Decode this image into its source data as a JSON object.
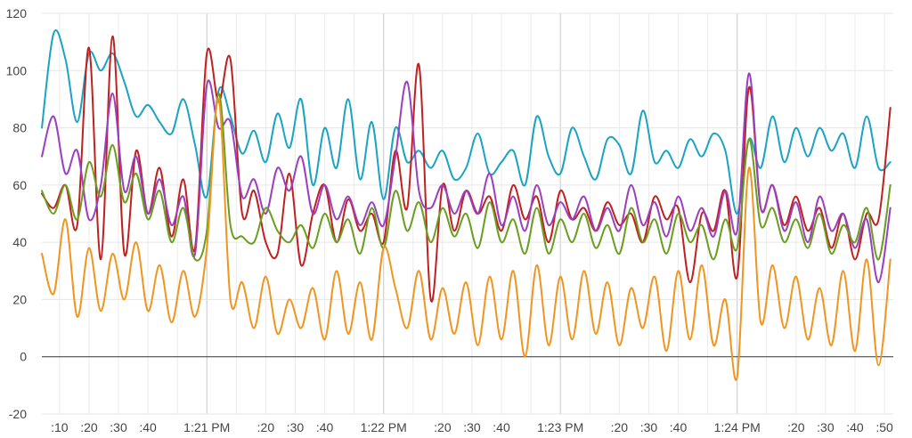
{
  "chart_data": {
    "type": "line",
    "title": "",
    "xlabel": "",
    "ylabel": "",
    "ylim": [
      -20,
      120
    ],
    "yticks": [
      -20,
      0,
      20,
      40,
      60,
      80,
      100,
      120
    ],
    "xlim_seconds_past_1_20_PM": [
      4,
      53
    ],
    "x_start": "1:20:04 PM",
    "x_end": "1:24:53 PM",
    "x_unit": "time",
    "xticks": [
      {
        "label": ":10",
        "time": "1:20:10 PM",
        "major": false
      },
      {
        "label": ":20",
        "time": "1:20:20 PM",
        "major": false
      },
      {
        "label": ":30",
        "time": "1:20:30 PM",
        "major": false
      },
      {
        "label": ":40",
        "time": "1:20:40 PM",
        "major": false
      },
      {
        "label": "1:21 PM",
        "time": "1:21:00 PM",
        "major": true
      },
      {
        "label": ":20",
        "time": "1:21:20 PM",
        "major": false
      },
      {
        "label": ":30",
        "time": "1:21:30 PM",
        "major": false
      },
      {
        "label": ":40",
        "time": "1:21:40 PM",
        "major": false
      },
      {
        "label": "1:22 PM",
        "time": "1:22:00 PM",
        "major": true
      },
      {
        "label": ":20",
        "time": "1:22:20 PM",
        "major": false
      },
      {
        "label": ":30",
        "time": "1:22:30 PM",
        "major": false
      },
      {
        "label": ":40",
        "time": "1:22:40 PM",
        "major": false
      },
      {
        "label": "1:23 PM",
        "time": "1:23:00 PM",
        "major": true
      },
      {
        "label": ":20",
        "time": "1:23:20 PM",
        "major": false
      },
      {
        "label": ":30",
        "time": "1:23:30 PM",
        "major": false
      },
      {
        "label": ":40",
        "time": "1:23:40 PM",
        "major": false
      },
      {
        "label": "1:24 PM",
        "time": "1:24:00 PM",
        "major": true
      },
      {
        "label": ":20",
        "time": "1:24:20 PM",
        "major": false
      },
      {
        "label": ":30",
        "time": "1:24:30 PM",
        "major": false
      },
      {
        "label": ":40",
        "time": "1:24:40 PM",
        "major": false
      },
      {
        "label": ":50",
        "time": "1:24:50 PM",
        "major": false
      }
    ],
    "grid": true,
    "legend": "none",
    "series": [
      {
        "color": "#1aa3c4",
        "times": [
          "1:20:04 PM",
          "1:20:08 PM",
          "1:20:12 PM",
          "1:20:16 PM",
          "1:20:20 PM",
          "1:20:24 PM",
          "1:20:28 PM",
          "1:20:32 PM",
          "1:20:36 PM",
          "1:20:40 PM",
          "1:20:44 PM",
          "1:20:48 PM",
          "1:20:52 PM",
          "1:20:56 PM",
          "1:21:00 PM",
          "1:21:04 PM",
          "1:21:08 PM",
          "1:21:12 PM",
          "1:21:16 PM",
          "1:21:20 PM",
          "1:21:24 PM",
          "1:21:28 PM",
          "1:21:32 PM",
          "1:21:36 PM",
          "1:21:40 PM",
          "1:21:44 PM",
          "1:21:48 PM",
          "1:21:52 PM",
          "1:21:56 PM",
          "1:22:00 PM",
          "1:22:04 PM",
          "1:22:08 PM",
          "1:22:12 PM",
          "1:22:16 PM",
          "1:22:20 PM",
          "1:22:24 PM",
          "1:22:28 PM",
          "1:22:32 PM",
          "1:22:36 PM",
          "1:22:40 PM",
          "1:22:44 PM",
          "1:22:48 PM",
          "1:22:52 PM",
          "1:22:56 PM",
          "1:23:00 PM",
          "1:23:04 PM",
          "1:23:08 PM",
          "1:23:12 PM",
          "1:23:16 PM",
          "1:23:20 PM",
          "1:23:24 PM",
          "1:23:28 PM",
          "1:23:32 PM",
          "1:23:36 PM",
          "1:23:40 PM",
          "1:23:44 PM",
          "1:23:48 PM",
          "1:23:52 PM",
          "1:23:56 PM",
          "1:24:00 PM",
          "1:24:04 PM",
          "1:24:08 PM",
          "1:24:12 PM",
          "1:24:16 PM",
          "1:24:20 PM",
          "1:24:24 PM",
          "1:24:28 PM",
          "1:24:32 PM",
          "1:24:36 PM",
          "1:24:40 PM",
          "1:24:44 PM",
          "1:24:48 PM",
          "1:24:52 PM"
        ],
        "values": [
          80,
          113,
          104,
          82,
          106,
          100,
          106,
          96,
          84,
          88,
          82,
          78,
          90,
          74,
          56,
          93,
          84,
          71,
          79,
          68,
          85,
          73,
          90,
          60,
          80,
          66,
          90,
          62,
          82,
          55,
          80,
          68,
          72,
          66,
          72,
          62,
          66,
          78,
          64,
          68,
          72,
          60,
          84,
          70,
          64,
          80,
          70,
          62,
          76,
          74,
          64,
          86,
          68,
          72,
          66,
          76,
          70,
          78,
          72,
          50,
          76,
          66,
          84,
          68,
          80,
          70,
          80,
          72,
          78,
          66,
          84,
          66,
          68
        ]
      },
      {
        "color": "#c0201f",
        "times": [
          "1:20:04 PM",
          "1:20:08 PM",
          "1:20:12 PM",
          "1:20:16 PM",
          "1:20:20 PM",
          "1:20:24 PM",
          "1:20:28 PM",
          "1:20:32 PM",
          "1:20:36 PM",
          "1:20:40 PM",
          "1:20:44 PM",
          "1:20:48 PM",
          "1:20:52 PM",
          "1:20:56 PM",
          "1:21:00 PM",
          "1:21:04 PM",
          "1:21:08 PM",
          "1:21:12 PM",
          "1:21:16 PM",
          "1:21:20 PM",
          "1:21:24 PM",
          "1:21:28 PM",
          "1:21:32 PM",
          "1:21:36 PM",
          "1:21:40 PM",
          "1:21:44 PM",
          "1:21:48 PM",
          "1:21:52 PM",
          "1:21:56 PM",
          "1:22:00 PM",
          "1:22:04 PM",
          "1:22:08 PM",
          "1:22:12 PM",
          "1:22:16 PM",
          "1:22:20 PM",
          "1:22:24 PM",
          "1:22:28 PM",
          "1:22:32 PM",
          "1:22:36 PM",
          "1:22:40 PM",
          "1:22:44 PM",
          "1:22:48 PM",
          "1:22:52 PM",
          "1:22:56 PM",
          "1:23:00 PM",
          "1:23:04 PM",
          "1:23:08 PM",
          "1:23:12 PM",
          "1:23:16 PM",
          "1:23:20 PM",
          "1:23:24 PM",
          "1:23:28 PM",
          "1:23:32 PM",
          "1:23:36 PM",
          "1:23:40 PM",
          "1:23:44 PM",
          "1:23:48 PM",
          "1:23:52 PM",
          "1:23:56 PM",
          "1:24:00 PM",
          "1:24:04 PM",
          "1:24:08 PM",
          "1:24:12 PM",
          "1:24:16 PM",
          "1:24:20 PM",
          "1:24:24 PM",
          "1:24:28 PM",
          "1:24:32 PM",
          "1:24:36 PM",
          "1:24:40 PM",
          "1:24:44 PM",
          "1:24:48 PM",
          "1:24:52 PM"
        ],
        "values": [
          57,
          52,
          60,
          46,
          108,
          34,
          112,
          36,
          72,
          50,
          66,
          42,
          62,
          38,
          106,
          89,
          104,
          50,
          58,
          40,
          36,
          64,
          32,
          50,
          60,
          40,
          55,
          44,
          50,
          40,
          72,
          52,
          102,
          20,
          60,
          44,
          58,
          50,
          56,
          44,
          60,
          48,
          56,
          40,
          58,
          48,
          52,
          44,
          54,
          46,
          50,
          40,
          56,
          48,
          52,
          26,
          50,
          44,
          58,
          28,
          94,
          52,
          60,
          46,
          56,
          44,
          52,
          38,
          50,
          34,
          50,
          48,
          87
        ]
      },
      {
        "color": "#9b3fbf",
        "times": [
          "1:20:04 PM",
          "1:20:08 PM",
          "1:20:12 PM",
          "1:20:16 PM",
          "1:20:20 PM",
          "1:20:24 PM",
          "1:20:28 PM",
          "1:20:32 PM",
          "1:20:36 PM",
          "1:20:40 PM",
          "1:20:44 PM",
          "1:20:48 PM",
          "1:20:52 PM",
          "1:20:56 PM",
          "1:21:00 PM",
          "1:21:04 PM",
          "1:21:08 PM",
          "1:21:12 PM",
          "1:21:16 PM",
          "1:21:20 PM",
          "1:21:24 PM",
          "1:21:28 PM",
          "1:21:32 PM",
          "1:21:36 PM",
          "1:21:40 PM",
          "1:21:44 PM",
          "1:21:48 PM",
          "1:21:52 PM",
          "1:21:56 PM",
          "1:22:00 PM",
          "1:22:04 PM",
          "1:22:08 PM",
          "1:22:12 PM",
          "1:22:16 PM",
          "1:22:20 PM",
          "1:22:24 PM",
          "1:22:28 PM",
          "1:22:32 PM",
          "1:22:36 PM",
          "1:22:40 PM",
          "1:22:44 PM",
          "1:22:48 PM",
          "1:22:52 PM",
          "1:22:56 PM",
          "1:23:00 PM",
          "1:23:04 PM",
          "1:23:08 PM",
          "1:23:12 PM",
          "1:23:16 PM",
          "1:23:20 PM",
          "1:23:24 PM",
          "1:23:28 PM",
          "1:23:32 PM",
          "1:23:36 PM",
          "1:23:40 PM",
          "1:23:44 PM",
          "1:23:48 PM",
          "1:23:52 PM",
          "1:23:56 PM",
          "1:24:00 PM",
          "1:24:04 PM",
          "1:24:08 PM",
          "1:24:12 PM",
          "1:24:16 PM",
          "1:24:20 PM",
          "1:24:24 PM",
          "1:24:28 PM",
          "1:24:32 PM",
          "1:24:36 PM",
          "1:24:40 PM",
          "1:24:44 PM",
          "1:24:48 PM",
          "1:24:52 PM"
        ],
        "values": [
          70,
          84,
          64,
          72,
          48,
          60,
          92,
          58,
          70,
          50,
          62,
          46,
          56,
          36,
          95,
          80,
          82,
          56,
          62,
          50,
          66,
          58,
          70,
          50,
          60,
          48,
          56,
          46,
          54,
          46,
          70,
          96,
          58,
          52,
          60,
          50,
          58,
          50,
          64,
          46,
          56,
          44,
          60,
          46,
          54,
          48,
          56,
          44,
          52,
          44,
          60,
          46,
          54,
          42,
          56,
          44,
          52,
          42,
          58,
          44,
          99,
          52,
          60,
          44,
          54,
          40,
          56,
          44,
          50,
          38,
          48,
          26,
          52
        ]
      },
      {
        "color": "#6a9e1f",
        "times": [
          "1:20:04 PM",
          "1:20:08 PM",
          "1:20:12 PM",
          "1:20:16 PM",
          "1:20:20 PM",
          "1:20:24 PM",
          "1:20:28 PM",
          "1:20:32 PM",
          "1:20:36 PM",
          "1:20:40 PM",
          "1:20:44 PM",
          "1:20:48 PM",
          "1:20:52 PM",
          "1:20:56 PM",
          "1:21:00 PM",
          "1:21:04 PM",
          "1:21:08 PM",
          "1:21:12 PM",
          "1:21:16 PM",
          "1:21:20 PM",
          "1:21:24 PM",
          "1:21:28 PM",
          "1:21:32 PM",
          "1:21:36 PM",
          "1:21:40 PM",
          "1:21:44 PM",
          "1:21:48 PM",
          "1:21:52 PM",
          "1:21:56 PM",
          "1:22:00 PM",
          "1:22:04 PM",
          "1:22:08 PM",
          "1:22:12 PM",
          "1:22:16 PM",
          "1:22:20 PM",
          "1:22:24 PM",
          "1:22:28 PM",
          "1:22:32 PM",
          "1:22:36 PM",
          "1:22:40 PM",
          "1:22:44 PM",
          "1:22:48 PM",
          "1:22:52 PM",
          "1:22:56 PM",
          "1:23:00 PM",
          "1:23:04 PM",
          "1:23:08 PM",
          "1:23:12 PM",
          "1:23:16 PM",
          "1:23:20 PM",
          "1:23:24 PM",
          "1:23:28 PM",
          "1:23:32 PM",
          "1:23:36 PM",
          "1:23:40 PM",
          "1:23:44 PM",
          "1:23:48 PM",
          "1:23:52 PM",
          "1:23:56 PM",
          "1:24:00 PM",
          "1:24:04 PM",
          "1:24:08 PM",
          "1:24:12 PM",
          "1:24:16 PM",
          "1:24:20 PM",
          "1:24:24 PM",
          "1:24:28 PM",
          "1:24:32 PM",
          "1:24:36 PM",
          "1:24:40 PM",
          "1:24:44 PM",
          "1:24:48 PM",
          "1:24:52 PM"
        ],
        "values": [
          58,
          50,
          60,
          48,
          68,
          56,
          74,
          54,
          64,
          48,
          58,
          40,
          52,
          34,
          44,
          92,
          46,
          42,
          40,
          52,
          44,
          40,
          46,
          38,
          50,
          40,
          48,
          36,
          52,
          38,
          58,
          44,
          54,
          40,
          52,
          42,
          50,
          38,
          54,
          40,
          48,
          36,
          52,
          36,
          48,
          40,
          50,
          38,
          46,
          36,
          52,
          40,
          48,
          36,
          50,
          40,
          46,
          34,
          48,
          38,
          76,
          46,
          52,
          40,
          48,
          38,
          50,
          36,
          46,
          40,
          52,
          34,
          60
        ]
      },
      {
        "color": "#f0951f",
        "times": [
          "1:20:04 PM",
          "1:20:08 PM",
          "1:20:12 PM",
          "1:20:16 PM",
          "1:20:20 PM",
          "1:20:24 PM",
          "1:20:28 PM",
          "1:20:32 PM",
          "1:20:36 PM",
          "1:20:40 PM",
          "1:20:44 PM",
          "1:20:48 PM",
          "1:20:52 PM",
          "1:20:56 PM",
          "1:21:00 PM",
          "1:21:04 PM",
          "1:21:08 PM",
          "1:21:12 PM",
          "1:21:16 PM",
          "1:21:20 PM",
          "1:21:24 PM",
          "1:21:28 PM",
          "1:21:32 PM",
          "1:21:36 PM",
          "1:21:40 PM",
          "1:21:44 PM",
          "1:21:48 PM",
          "1:21:52 PM",
          "1:21:56 PM",
          "1:22:00 PM",
          "1:22:04 PM",
          "1:22:08 PM",
          "1:22:12 PM",
          "1:22:16 PM",
          "1:22:20 PM",
          "1:22:24 PM",
          "1:22:28 PM",
          "1:22:32 PM",
          "1:22:36 PM",
          "1:22:40 PM",
          "1:22:44 PM",
          "1:22:48 PM",
          "1:22:52 PM",
          "1:22:56 PM",
          "1:23:00 PM",
          "1:23:04 PM",
          "1:23:08 PM",
          "1:23:12 PM",
          "1:23:16 PM",
          "1:23:20 PM",
          "1:23:24 PM",
          "1:23:28 PM",
          "1:23:32 PM",
          "1:23:36 PM",
          "1:23:40 PM",
          "1:23:44 PM",
          "1:23:48 PM",
          "1:23:52 PM",
          "1:23:56 PM",
          "1:24:00 PM",
          "1:24:04 PM",
          "1:24:08 PM",
          "1:24:12 PM",
          "1:24:16 PM",
          "1:24:20 PM",
          "1:24:24 PM",
          "1:24:28 PM",
          "1:24:32 PM",
          "1:24:36 PM",
          "1:24:40 PM",
          "1:24:44 PM",
          "1:24:48 PM",
          "1:24:52 PM"
        ],
        "values": [
          36,
          22,
          48,
          14,
          38,
          16,
          36,
          20,
          40,
          16,
          32,
          12,
          30,
          14,
          38,
          90,
          20,
          26,
          10,
          28,
          8,
          20,
          10,
          24,
          6,
          30,
          8,
          26,
          6,
          38,
          24,
          10,
          30,
          6,
          24,
          8,
          26,
          4,
          28,
          6,
          30,
          0,
          32,
          4,
          28,
          6,
          30,
          8,
          26,
          4,
          24,
          10,
          28,
          2,
          30,
          6,
          32,
          4,
          20,
          -7,
          66,
          12,
          32,
          10,
          28,
          6,
          24,
          4,
          30,
          2,
          34,
          -3,
          34
        ]
      }
    ]
  }
}
